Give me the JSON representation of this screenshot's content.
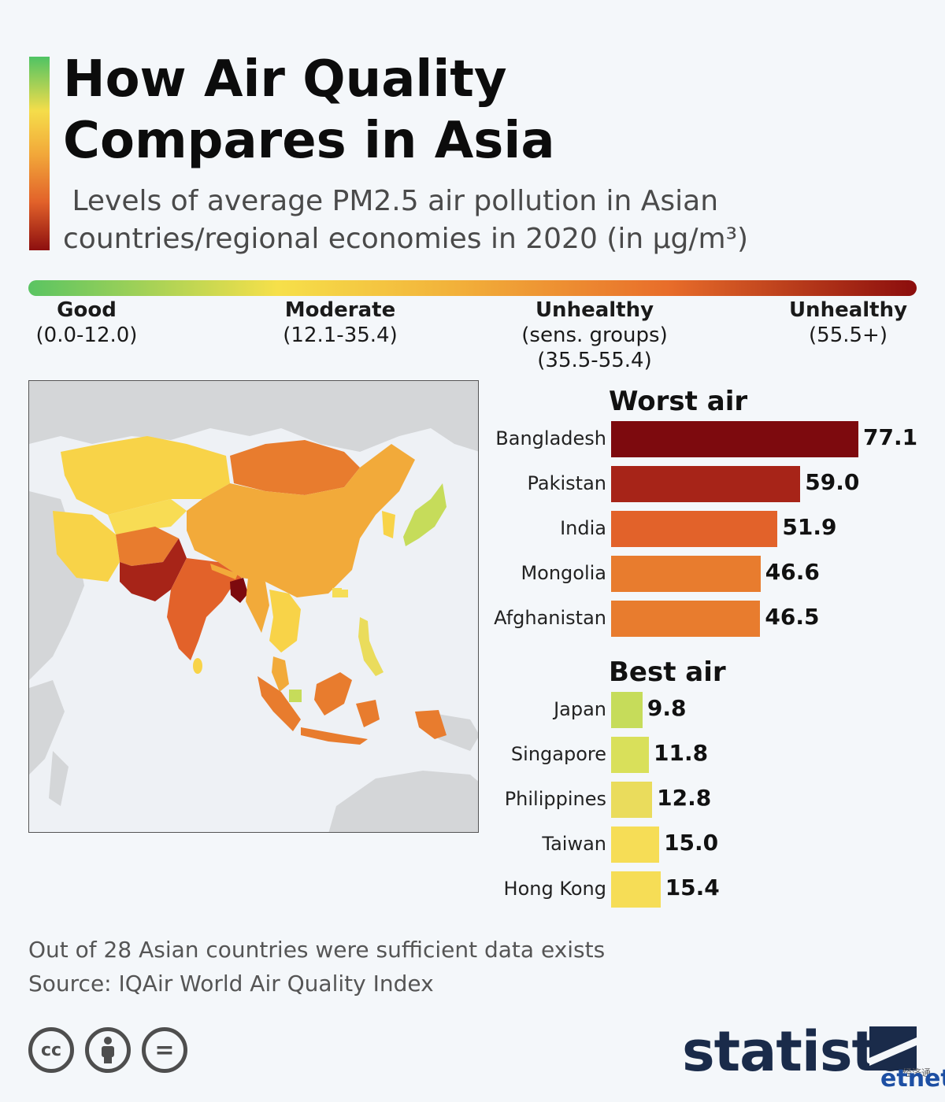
{
  "header": {
    "title_line1": "How Air Quality",
    "title_line2": "Compares in Asia",
    "subtitle_line1": " Levels of average PM2.5 air pollution in Asian",
    "subtitle_line2": "countries/regional economies in 2020 (in µg/m³)"
  },
  "scale": [
    {
      "name": "Good",
      "range_line1": "(0.0-12.0)",
      "range_line2": ""
    },
    {
      "name": "Moderate",
      "range_line1": "(12.1-35.4)",
      "range_line2": ""
    },
    {
      "name": "Unhealthy",
      "range_line1": "(sens. groups)",
      "range_line2": "(35.5-55.4)"
    },
    {
      "name": "Unhealthy",
      "range_line1": "(55.5+)",
      "range_line2": ""
    }
  ],
  "chart_data": [
    {
      "type": "bar",
      "title": "Worst air",
      "categories": [
        "Bangladesh",
        "Pakistan",
        "India",
        "Mongolia",
        "Afghanistan"
      ],
      "values": [
        77.1,
        59.0,
        51.9,
        46.6,
        46.5
      ],
      "value_labels": [
        "77.1",
        "59.0",
        "51.9",
        "46.6",
        "46.5"
      ],
      "colors": [
        "#7d0a0e",
        "#a72418",
        "#e2622a",
        "#e87c2e",
        "#e87c2e"
      ]
    },
    {
      "type": "bar",
      "title": "Best air",
      "categories": [
        "Japan",
        "Singapore",
        "Philippines",
        "Taiwan",
        "Hong Kong"
      ],
      "values": [
        9.8,
        11.8,
        12.8,
        15.0,
        15.4
      ],
      "value_labels": [
        "9.8",
        "11.8",
        "12.8",
        "15.0",
        "15.4"
      ],
      "colors": [
        "#c6dc5a",
        "#d9e05a",
        "#eadc5c",
        "#f6dd56",
        "#f6dd56"
      ]
    }
  ],
  "colors": {
    "good": "#5ac462",
    "moderate": "#f6e04a",
    "sensitive": "#f2b13a",
    "unhealthy": "#8b0d0d",
    "land_no_data": "#d4d6d8",
    "background": "#f4f7fa"
  },
  "footer": {
    "note": "Out of 28 Asian countries were sufficient data exists",
    "source": "Source: IQAir World Air Quality Index",
    "logo": "statista",
    "watermark": "etnet",
    "watermark_cn": "经济通",
    "license_icons": [
      "cc-icon",
      "by-icon",
      "nd-icon"
    ],
    "cc_text": "cc",
    "nd_text": "="
  }
}
